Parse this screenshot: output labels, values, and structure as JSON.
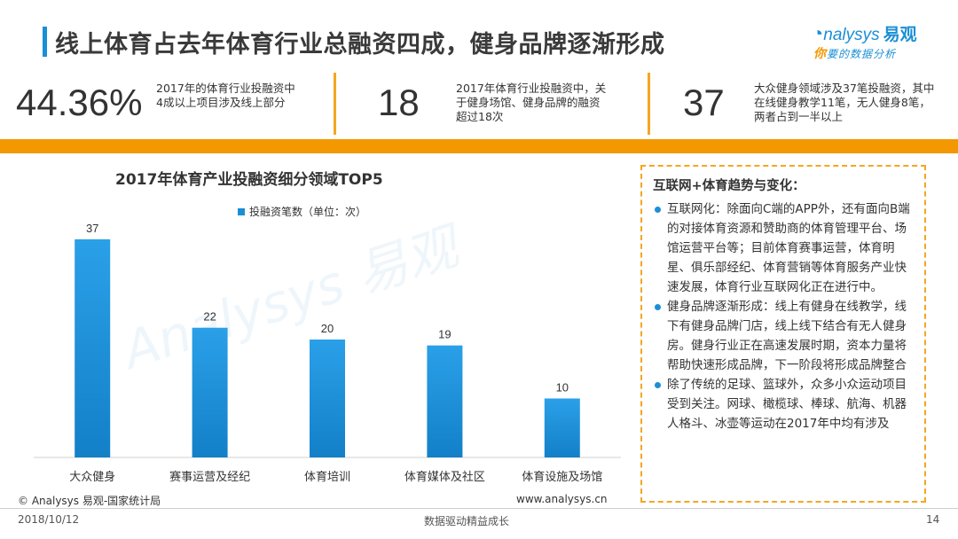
{
  "header": {
    "title": "线上体育占去年体育行业总融资四成，健身品牌逐渐形成",
    "logo_text": "nalysys",
    "logo_cn": "易观",
    "logo_tagline_hl": "你",
    "logo_tagline": "要的数据分析"
  },
  "stats": [
    {
      "value": "44.36%",
      "desc": "2017年的体育行业投融资中4成以上项目涉及线上部分"
    },
    {
      "value": "18",
      "desc": "2017年体育行业投融资中，关于健身场馆、健身品牌的融资超过18次"
    },
    {
      "value": "37",
      "desc": "大众健身领域涉及37笔投融资，其中在线健身教学11笔，无人健身8笔，两者占到一半以上"
    }
  ],
  "chart_data": {
    "type": "bar",
    "title": "2017年体育产业投融资细分领域TOP5",
    "categories": [
      "大众健身",
      "赛事运营及经纪",
      "体育培训",
      "体育媒体及社区",
      "体育设施及场馆"
    ],
    "series": [
      {
        "name": "投融资笔数（单位：次）",
        "values": [
          37,
          22,
          20,
          19,
          10
        ],
        "color": "#1a8fd6"
      }
    ],
    "ylim": [
      0,
      40
    ],
    "grid": false,
    "legend": "top-left",
    "data_labels": true
  },
  "watermark": "Analysys 易观",
  "side_panel": {
    "title": "互联网+体育趋势与变化：",
    "items": [
      "互联网化：除面向C端的APP外，还有面向B端的对接体育资源和赞助商的体育管理平台、场馆运营平台等；目前体育赛事运营，体育明星、俱乐部经纪、体育营销等体育服务产业快速发展，体育行业互联网化正在进行中。",
      "健身品牌逐渐形成：线上有健身在线教学，线下有健身品牌门店，线上线下结合有无人健身房。健身行业正在高速发展时期，资本力量将帮助快速形成品牌，下一阶段将形成品牌整合",
      "除了传统的足球、篮球外，众多小众运动项目受到关注。网球、橄榄球、棒球、航海、机器人格斗、冰壶等运动在2017年中均有涉及"
    ]
  },
  "footer": {
    "source": "© Analysys 易观-国家统计局",
    "url": "www.analysys.cn",
    "date": "2018/10/12",
    "slogan": "数据驱动精益成长",
    "page": "14"
  },
  "colors": {
    "accent": "#1a8fd6",
    "orange": "#f39800",
    "border": "#f5a623"
  }
}
